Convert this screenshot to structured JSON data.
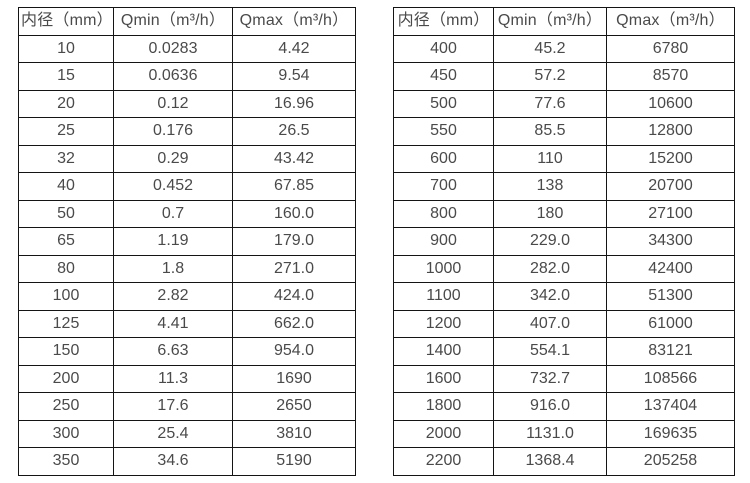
{
  "colors": {
    "background": "#ffffff",
    "border": "#141414",
    "text": "#4a4a4a"
  },
  "tables": [
    {
      "id": "flow-table-small-diameters",
      "headers": [
        "内径（mm）",
        "Qmin（m³/h）",
        "Qmax（m³/h）"
      ],
      "rows": [
        [
          "10",
          "0.0283",
          "4.42"
        ],
        [
          "15",
          "0.0636",
          "9.54"
        ],
        [
          "20",
          "0.12",
          "16.96"
        ],
        [
          "25",
          "0.176",
          "26.5"
        ],
        [
          "32",
          "0.29",
          "43.42"
        ],
        [
          "40",
          "0.452",
          "67.85"
        ],
        [
          "50",
          "0.7",
          "160.0"
        ],
        [
          "65",
          "1.19",
          "179.0"
        ],
        [
          "80",
          "1.8",
          "271.0"
        ],
        [
          "100",
          "2.82",
          "424.0"
        ],
        [
          "125",
          "4.41",
          "662.0"
        ],
        [
          "150",
          "6.63",
          "954.0"
        ],
        [
          "200",
          "11.3",
          "1690"
        ],
        [
          "250",
          "17.6",
          "2650"
        ],
        [
          "300",
          "25.4",
          "3810"
        ],
        [
          "350",
          "34.6",
          "5190"
        ]
      ]
    },
    {
      "id": "flow-table-large-diameters",
      "headers": [
        "内径（mm）",
        "Qmin（m³/h）",
        "Qmax（m³/h）"
      ],
      "rows": [
        [
          "400",
          "45.2",
          "6780"
        ],
        [
          "450",
          "57.2",
          "8570"
        ],
        [
          "500",
          "77.6",
          "10600"
        ],
        [
          "550",
          "85.5",
          "12800"
        ],
        [
          "600",
          "110",
          "15200"
        ],
        [
          "700",
          "138",
          "20700"
        ],
        [
          "800",
          "180",
          "27100"
        ],
        [
          "900",
          "229.0",
          "34300"
        ],
        [
          "1000",
          "282.0",
          "42400"
        ],
        [
          "1100",
          "342.0",
          "51300"
        ],
        [
          "1200",
          "407.0",
          "61000"
        ],
        [
          "1400",
          "554.1",
          "83121"
        ],
        [
          "1600",
          "732.7",
          "108566"
        ],
        [
          "1800",
          "916.0",
          "137404"
        ],
        [
          "2000",
          "1131.0",
          "169635"
        ],
        [
          "2200",
          "1368.4",
          "205258"
        ]
      ]
    }
  ]
}
